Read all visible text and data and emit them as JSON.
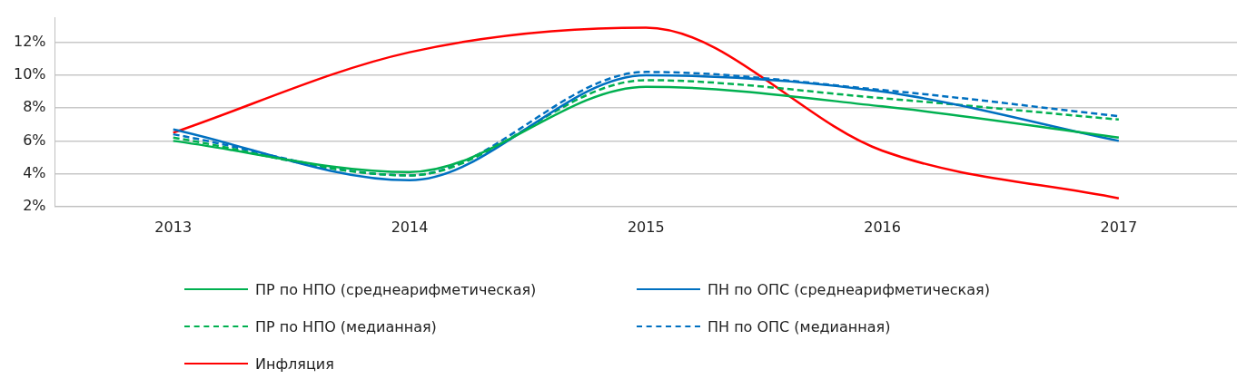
{
  "chart_data": {
    "type": "line",
    "categories": [
      "2013",
      "2014",
      "2015",
      "2016",
      "2017"
    ],
    "series": [
      {
        "name": "ПР по НПО (среднеарифметическая)",
        "color": "#00b050",
        "values": [
          6.0,
          4.1,
          9.3,
          8.1,
          6.2
        ]
      },
      {
        "name": "ПН по ОПС (среднеарифметическая)",
        "color": "#0070c0",
        "values": [
          6.7,
          3.6,
          10.0,
          9.0,
          6.0
        ]
      },
      {
        "name": "ПР по НПО (медианная)",
        "color": "#00b050",
        "line_style": "dashed",
        "values": [
          6.2,
          3.9,
          9.7,
          8.6,
          7.3
        ]
      },
      {
        "name": "ПН по ОПС (медианная)",
        "color": "#0070c0",
        "line_style": "dashed",
        "values": [
          6.4,
          3.9,
          10.2,
          9.1,
          7.5
        ]
      },
      {
        "name": "Инфляция",
        "color": "#ff0000",
        "values": [
          6.5,
          11.4,
          12.9,
          5.4,
          2.5
        ]
      }
    ],
    "ylim": [
      2,
      13.5
    ],
    "yticks": [
      {
        "value": 2,
        "label": "2%"
      },
      {
        "value": 4,
        "label": "4%"
      },
      {
        "value": 6,
        "label": "6%"
      },
      {
        "value": 8,
        "label": "8%"
      },
      {
        "value": 10,
        "label": "10%"
      },
      {
        "value": 12,
        "label": "12%"
      }
    ],
    "grid": "y",
    "legend": "bottom",
    "marker": "none",
    "line_style": "solid"
  }
}
